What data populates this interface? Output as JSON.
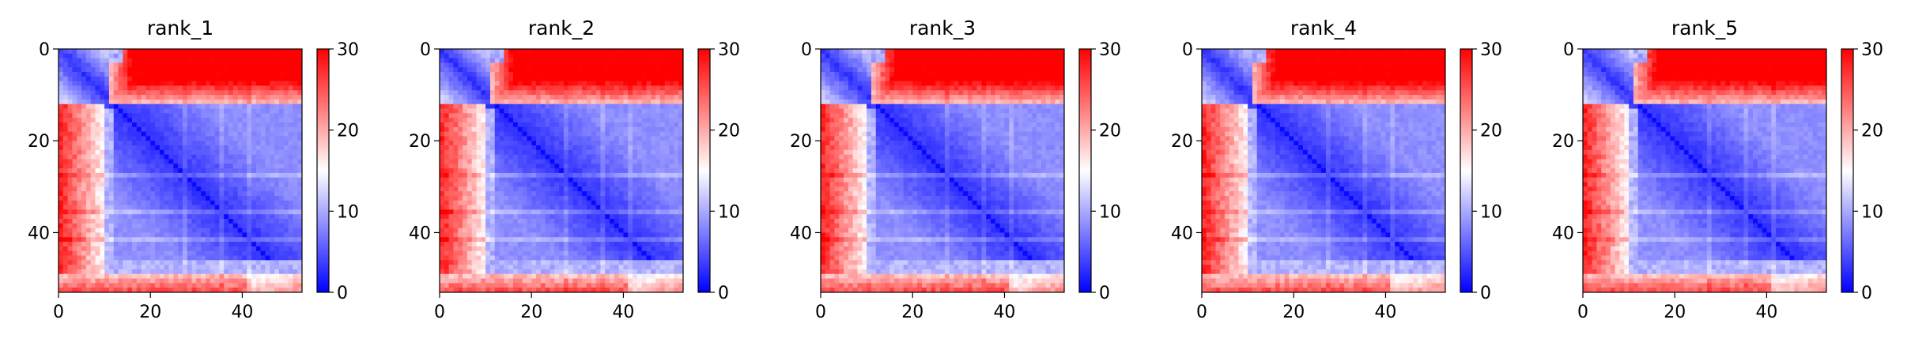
{
  "chart_data": [
    {
      "type": "heatmap",
      "title": "rank_1",
      "grid_size": 53,
      "x_ticks": [
        "0",
        "20",
        "40"
      ],
      "y_ticks": [
        "0",
        "20",
        "40"
      ],
      "x_tick_values": [
        0,
        20,
        40
      ],
      "y_tick_values": [
        0,
        20,
        40
      ],
      "colorbar": {
        "min": 0,
        "max": 30,
        "ticks": [
          "0",
          "10",
          "20",
          "30"
        ],
        "colormap": "bwr"
      },
      "pattern": {
        "high_value_top_block_rows": [
          0,
          11
        ],
        "high_value_top_block_cols": [
          11,
          53
        ],
        "high_value_bottom_rows": [
          49,
          53
        ],
        "low_value_core": [
          11,
          49
        ],
        "diagonal": 0
      }
    },
    {
      "type": "heatmap",
      "title": "rank_2",
      "grid_size": 53,
      "x_ticks": [
        "0",
        "20",
        "40"
      ],
      "y_ticks": [
        "0",
        "20",
        "40"
      ],
      "x_tick_values": [
        0,
        20,
        40
      ],
      "y_tick_values": [
        0,
        20,
        40
      ],
      "colorbar": {
        "min": 0,
        "max": 30,
        "ticks": [
          "0",
          "10",
          "20",
          "30"
        ],
        "colormap": "bwr"
      },
      "pattern": {
        "high_value_top_block_rows": [
          0,
          11
        ],
        "high_value_top_block_cols": [
          11,
          53
        ],
        "high_value_bottom_rows": [
          49,
          53
        ],
        "low_value_core": [
          11,
          49
        ],
        "diagonal": 0
      }
    },
    {
      "type": "heatmap",
      "title": "rank_3",
      "grid_size": 53,
      "x_ticks": [
        "0",
        "20",
        "40"
      ],
      "y_ticks": [
        "0",
        "20",
        "40"
      ],
      "x_tick_values": [
        0,
        20,
        40
      ],
      "y_tick_values": [
        0,
        20,
        40
      ],
      "colorbar": {
        "min": 0,
        "max": 30,
        "ticks": [
          "0",
          "10",
          "20",
          "30"
        ],
        "colormap": "bwr"
      },
      "pattern": {
        "high_value_top_block_rows": [
          0,
          11
        ],
        "high_value_top_block_cols": [
          11,
          53
        ],
        "high_value_bottom_rows": [
          49,
          53
        ],
        "low_value_core": [
          11,
          49
        ],
        "diagonal": 0
      }
    },
    {
      "type": "heatmap",
      "title": "rank_4",
      "grid_size": 53,
      "x_ticks": [
        "0",
        "20",
        "40"
      ],
      "y_ticks": [
        "0",
        "20",
        "40"
      ],
      "x_tick_values": [
        0,
        20,
        40
      ],
      "y_tick_values": [
        0,
        20,
        40
      ],
      "colorbar": {
        "min": 0,
        "max": 30,
        "ticks": [
          "0",
          "10",
          "20",
          "30"
        ],
        "colormap": "bwr"
      },
      "pattern": {
        "high_value_top_block_rows": [
          0,
          11
        ],
        "high_value_top_block_cols": [
          11,
          53
        ],
        "high_value_bottom_rows": [
          49,
          53
        ],
        "low_value_core": [
          11,
          49
        ],
        "diagonal": 0
      }
    },
    {
      "type": "heatmap",
      "title": "rank_5",
      "grid_size": 53,
      "x_ticks": [
        "0",
        "20",
        "40"
      ],
      "y_ticks": [
        "0",
        "20",
        "40"
      ],
      "x_tick_values": [
        0,
        20,
        40
      ],
      "y_tick_values": [
        0,
        20,
        40
      ],
      "colorbar": {
        "min": 0,
        "max": 30,
        "ticks": [
          "0",
          "10",
          "20",
          "30"
        ],
        "colormap": "bwr"
      },
      "pattern": {
        "high_value_top_block_rows": [
          0,
          11
        ],
        "high_value_top_block_cols": [
          11,
          53
        ],
        "high_value_bottom_rows": [
          49,
          53
        ],
        "low_value_core": [
          11,
          49
        ],
        "diagonal": 0
      }
    }
  ]
}
